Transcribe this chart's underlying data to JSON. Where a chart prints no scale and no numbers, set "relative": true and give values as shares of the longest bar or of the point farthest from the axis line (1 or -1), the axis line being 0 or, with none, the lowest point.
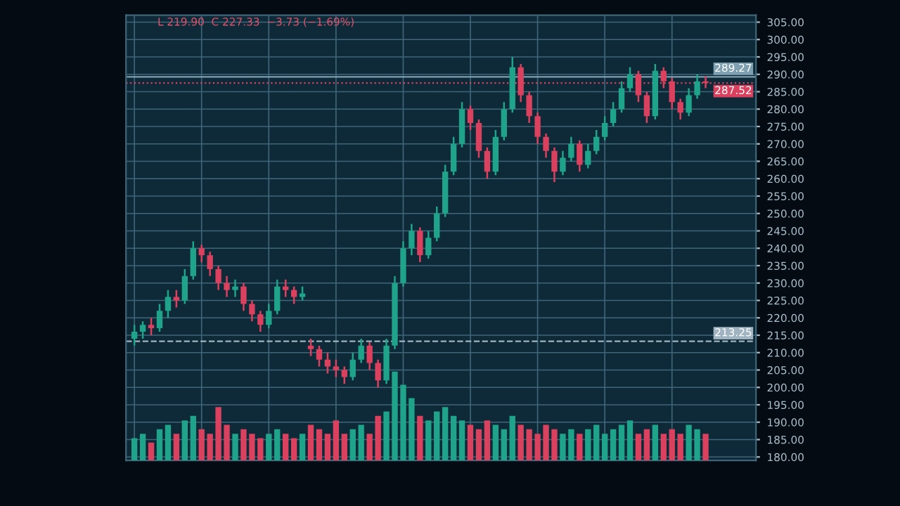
{
  "chart_data": [
    {
      "type": "candlestick",
      "categories": [
        null,
        null,
        null,
        null,
        null,
        null,
        null,
        null,
        null,
        null,
        null,
        null,
        null,
        null,
        null,
        null,
        null,
        null,
        null,
        null,
        null,
        null,
        null,
        null,
        null,
        null,
        null,
        null,
        null,
        null,
        null,
        null,
        null,
        null,
        null,
        null,
        null,
        null,
        null,
        null,
        null,
        null,
        null,
        null,
        null,
        null,
        null,
        null,
        null,
        null,
        null,
        null,
        null,
        null,
        null,
        null,
        null,
        null,
        null,
        null,
        null,
        null,
        null,
        null,
        null,
        null,
        null,
        null,
        null
      ],
      "ohlc": [
        [
          214,
          218,
          212,
          216
        ],
        [
          216,
          219,
          214,
          218
        ],
        [
          218,
          220,
          215,
          217
        ],
        [
          217,
          224,
          216,
          222
        ],
        [
          222,
          228,
          220,
          226
        ],
        [
          226,
          228,
          223,
          225
        ],
        [
          225,
          234,
          224,
          232
        ],
        [
          232,
          242,
          231,
          240
        ],
        [
          240,
          241,
          236,
          238
        ],
        [
          238,
          239,
          232,
          234
        ],
        [
          234,
          235,
          228,
          230
        ],
        [
          230,
          232,
          226,
          228
        ],
        [
          228,
          231,
          226,
          229
        ],
        [
          229,
          230,
          222,
          224
        ],
        [
          224,
          225,
          219,
          221
        ],
        [
          221,
          222,
          216,
          218
        ],
        [
          218,
          224,
          217,
          222
        ],
        [
          222,
          231,
          221,
          229
        ],
        [
          229,
          231,
          226,
          228
        ],
        [
          228,
          229,
          224,
          226
        ],
        [
          226,
          229,
          225,
          227
        ],
        [
          212,
          214,
          209,
          211
        ],
        [
          211,
          212,
          206,
          208
        ],
        [
          208,
          210,
          204,
          206
        ],
        [
          206,
          208,
          203,
          205
        ],
        [
          205,
          206,
          201,
          203
        ],
        [
          203,
          210,
          202,
          208
        ],
        [
          208,
          214,
          207,
          212
        ],
        [
          212,
          213,
          205,
          207
        ],
        [
          207,
          208,
          200,
          202
        ],
        [
          202,
          214,
          201,
          212
        ],
        [
          212,
          232,
          211,
          230
        ],
        [
          230,
          242,
          229,
          240
        ],
        [
          240,
          247,
          238,
          245
        ],
        [
          245,
          246,
          236,
          238
        ],
        [
          238,
          245,
          237,
          243
        ],
        [
          243,
          252,
          242,
          250
        ],
        [
          250,
          264,
          249,
          262
        ],
        [
          262,
          272,
          261,
          270
        ],
        [
          270,
          282,
          269,
          280
        ],
        [
          280,
          281,
          274,
          276
        ],
        [
          276,
          277,
          266,
          268
        ],
        [
          268,
          269,
          260,
          262
        ],
        [
          262,
          274,
          261,
          272
        ],
        [
          272,
          282,
          271,
          280
        ],
        [
          280,
          295,
          279,
          292
        ],
        [
          292,
          293,
          282,
          284
        ],
        [
          284,
          285,
          276,
          278
        ],
        [
          278,
          279,
          270,
          272
        ],
        [
          272,
          273,
          266,
          268
        ],
        [
          268,
          269,
          259,
          262
        ],
        [
          262,
          268,
          261,
          266
        ],
        [
          266,
          272,
          265,
          270
        ],
        [
          270,
          271,
          262,
          264
        ],
        [
          264,
          270,
          263,
          268
        ],
        [
          268,
          274,
          267,
          272
        ],
        [
          272,
          278,
          271,
          276
        ],
        [
          276,
          282,
          275,
          280
        ],
        [
          280,
          288,
          279,
          286
        ],
        [
          286,
          292,
          285,
          290
        ],
        [
          290,
          291,
          282,
          284
        ],
        [
          284,
          285,
          276,
          278
        ],
        [
          278,
          293,
          277,
          291
        ],
        [
          291,
          292,
          286,
          288
        ],
        [
          288,
          289,
          280,
          282
        ],
        [
          282,
          283,
          277,
          279
        ],
        [
          279,
          286,
          278,
          284
        ],
        [
          284,
          290,
          283,
          288
        ],
        [
          288,
          289.5,
          286,
          287.52
        ]
      ],
      "colors": [
        "#1fa38a",
        "#1fa38a",
        "#d9415e",
        "#1fa38a",
        "#1fa38a",
        "#d9415e",
        "#1fa38a",
        "#1fa38a",
        "#d9415e",
        "#d9415e",
        "#d9415e",
        "#d9415e",
        "#1fa38a",
        "#d9415e",
        "#d9415e",
        "#d9415e",
        "#1fa38a",
        "#1fa38a",
        "#d9415e",
        "#d9415e",
        "#1fa38a",
        "#d9415e",
        "#d9415e",
        "#d9415e",
        "#d9415e",
        "#d9415e",
        "#1fa38a",
        "#1fa38a",
        "#d9415e",
        "#d9415e",
        "#1fa38a",
        "#1fa38a",
        "#1fa38a",
        "#1fa38a",
        "#d9415e",
        "#1fa38a",
        "#1fa38a",
        "#1fa38a",
        "#1fa38a",
        "#1fa38a",
        "#d9415e",
        "#d9415e",
        "#d9415e",
        "#1fa38a",
        "#1fa38a",
        "#1fa38a",
        "#d9415e",
        "#d9415e",
        "#d9415e",
        "#d9415e",
        "#d9415e",
        "#1fa38a",
        "#1fa38a",
        "#d9415e",
        "#1fa38a",
        "#1fa38a",
        "#1fa38a",
        "#1fa38a",
        "#1fa38a",
        "#1fa38a",
        "#d9415e",
        "#d9415e",
        "#1fa38a",
        "#d9415e",
        "#d9415e",
        "#d9415e",
        "#1fa38a",
        "#1fa38a",
        "#d9415e"
      ],
      "ylim": [
        179,
        307
      ],
      "yticks": [
        {
          "value": 180,
          "label": "180.00"
        },
        {
          "value": 185,
          "label": "185.00"
        },
        {
          "value": 190,
          "label": "190.00"
        },
        {
          "value": 195,
          "label": "195.00"
        },
        {
          "value": 200,
          "label": "200.00"
        },
        {
          "value": 205,
          "label": "205.00"
        },
        {
          "value": 210,
          "label": "210.00"
        },
        {
          "value": 215,
          "label": "215.00"
        },
        {
          "value": 220,
          "label": "220.00"
        },
        {
          "value": 225,
          "label": "225.00"
        },
        {
          "value": 230,
          "label": "230.00"
        },
        {
          "value": 235,
          "label": "235.00"
        },
        {
          "value": 240,
          "label": "240.00"
        },
        {
          "value": 245,
          "label": "245.00"
        },
        {
          "value": 250,
          "label": "250.00"
        },
        {
          "value": 255,
          "label": "255.00"
        },
        {
          "value": 260,
          "label": "260.00"
        },
        {
          "value": 265,
          "label": "265.00"
        },
        {
          "value": 270,
          "label": "270.00"
        },
        {
          "value": 275,
          "label": "275.00"
        },
        {
          "value": 280,
          "label": "280.00"
        },
        {
          "value": 285,
          "label": "285.00"
        },
        {
          "value": 290,
          "label": "290.00"
        },
        {
          "value": 295,
          "label": "295.00"
        },
        {
          "value": 300,
          "label": "300.00"
        },
        {
          "value": 305,
          "label": "305.00"
        }
      ],
      "tick_labels": "y",
      "grid": true,
      "ref_lines": [
        {
          "axis": "y",
          "value": 213.25,
          "label": "213.25",
          "color": "#9fb4c0",
          "line_style": "dashed"
        },
        {
          "axis": "y",
          "value": 289.27,
          "label": "289.27",
          "color": "#7fa0b0",
          "line_style": "solid"
        },
        {
          "axis": "y",
          "value": 287.52,
          "label": "287.52",
          "color": "#d9415e",
          "line_style": "dotted"
        }
      ],
      "annotations": [
        "L 219.90  C 227.33  −3.73 (−1.69%)"
      ]
    },
    {
      "type": "bar",
      "relative": true,
      "categories": [
        null,
        null,
        null,
        null,
        null,
        null,
        null,
        null,
        null,
        null,
        null,
        null,
        null,
        null,
        null,
        null,
        null,
        null,
        null,
        null,
        null,
        null,
        null,
        null,
        null,
        null,
        null,
        null,
        null,
        null,
        null,
        null,
        null,
        null,
        null,
        null,
        null,
        null,
        null,
        null,
        null,
        null,
        null,
        null,
        null,
        null,
        null,
        null,
        null,
        null,
        null,
        null,
        null,
        null,
        null,
        null,
        null,
        null,
        null,
        null,
        null,
        null,
        null,
        null,
        null,
        null,
        null,
        null,
        null
      ],
      "values": [
        0.25,
        0.3,
        0.2,
        0.35,
        0.4,
        0.3,
        0.45,
        0.5,
        0.35,
        0.3,
        0.6,
        0.4,
        0.3,
        0.35,
        0.3,
        0.25,
        0.3,
        0.35,
        0.3,
        0.25,
        0.3,
        0.4,
        0.35,
        0.3,
        0.45,
        0.3,
        0.35,
        0.4,
        0.3,
        0.5,
        0.55,
        1.0,
        0.85,
        0.7,
        0.5,
        0.45,
        0.55,
        0.6,
        0.5,
        0.45,
        0.4,
        0.35,
        0.45,
        0.4,
        0.35,
        0.5,
        0.4,
        0.35,
        0.3,
        0.4,
        0.35,
        0.3,
        0.35,
        0.3,
        0.35,
        0.4,
        0.3,
        0.35,
        0.4,
        0.45,
        0.3,
        0.35,
        0.4,
        0.3,
        0.35,
        0.3,
        0.4,
        0.35,
        0.3
      ],
      "colors": [
        "#1fa38a",
        "#1fa38a",
        "#d9415e",
        "#1fa38a",
        "#1fa38a",
        "#d9415e",
        "#1fa38a",
        "#1fa38a",
        "#d9415e",
        "#d9415e",
        "#d9415e",
        "#d9415e",
        "#1fa38a",
        "#d9415e",
        "#d9415e",
        "#d9415e",
        "#1fa38a",
        "#1fa38a",
        "#d9415e",
        "#d9415e",
        "#1fa38a",
        "#d9415e",
        "#d9415e",
        "#d9415e",
        "#d9415e",
        "#d9415e",
        "#1fa38a",
        "#1fa38a",
        "#d9415e",
        "#d9415e",
        "#1fa38a",
        "#1fa38a",
        "#1fa38a",
        "#1fa38a",
        "#d9415e",
        "#1fa38a",
        "#1fa38a",
        "#1fa38a",
        "#1fa38a",
        "#1fa38a",
        "#d9415e",
        "#d9415e",
        "#d9415e",
        "#1fa38a",
        "#1fa38a",
        "#1fa38a",
        "#d9415e",
        "#d9415e",
        "#d9415e",
        "#d9415e",
        "#d9415e",
        "#1fa38a",
        "#1fa38a",
        "#d9415e",
        "#1fa38a",
        "#1fa38a",
        "#1fa38a",
        "#1fa38a",
        "#1fa38a",
        "#1fa38a",
        "#d9415e",
        "#d9415e",
        "#1fa38a",
        "#d9415e",
        "#d9415e",
        "#d9415e",
        "#1fa38a",
        "#1fa38a",
        "#d9415e"
      ]
    }
  ]
}
